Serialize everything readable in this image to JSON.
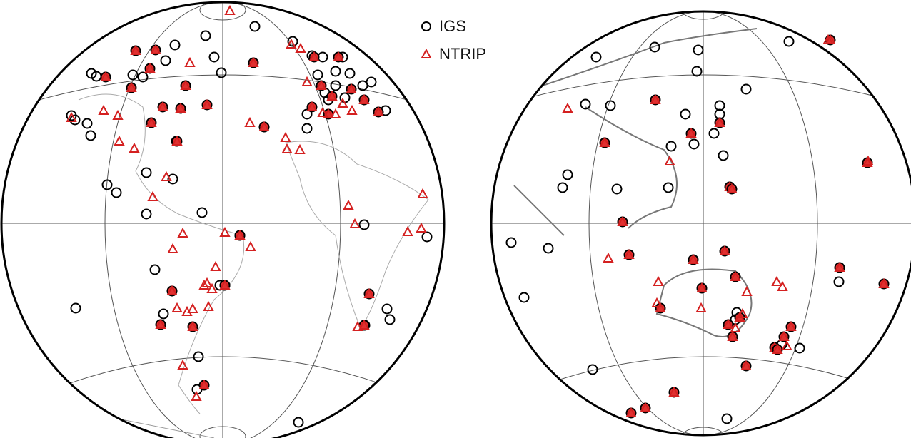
{
  "legend": {
    "items": [
      {
        "label": "IGS"
      },
      {
        "label": "NTRIP"
      }
    ]
  }
}
